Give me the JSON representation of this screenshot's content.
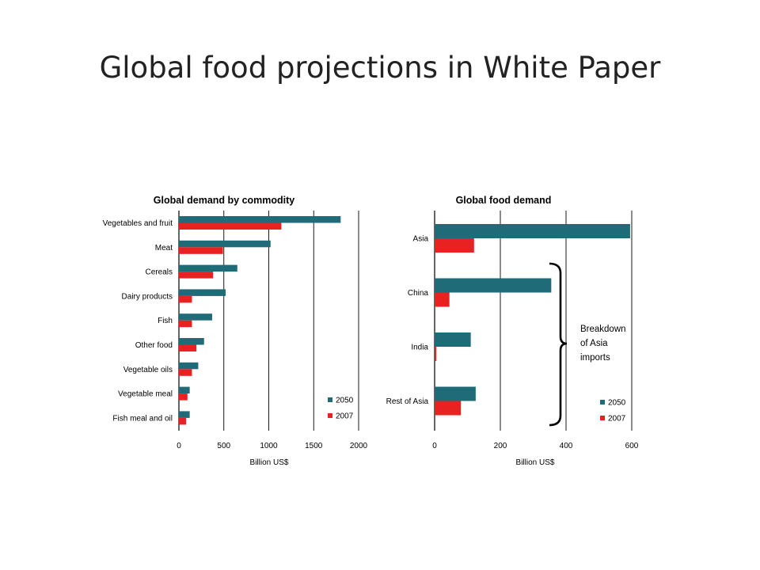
{
  "slide": {
    "title": "Global food projections in White Paper"
  },
  "colors": {
    "2050": "#1f6b78",
    "2007": "#e82121"
  },
  "chart_data": [
    {
      "type": "bar",
      "orientation": "horizontal",
      "title": "Global demand by commodity",
      "xlabel": "Billion US$",
      "ylabel": "",
      "xlim": [
        0,
        2000
      ],
      "xticks": [
        "0",
        "500",
        "1000",
        "1500",
        "2000"
      ],
      "grid": true,
      "legend": "bottom-right",
      "categories": [
        "Vegetables and fruit",
        "Meat",
        "Cereals",
        "Dairy products",
        "Fish",
        "Other food",
        "Vegetable oils",
        "Vegetable meal",
        "Fish meal and oil"
      ],
      "series": [
        {
          "name": "2050",
          "values": [
            1800,
            1020,
            650,
            520,
            370,
            280,
            215,
            120,
            120
          ]
        },
        {
          "name": "2007",
          "values": [
            1140,
            490,
            380,
            145,
            145,
            195,
            145,
            95,
            80
          ]
        }
      ]
    },
    {
      "type": "bar",
      "orientation": "horizontal",
      "title": "Global food demand",
      "xlabel": "Billion US$",
      "ylabel": "",
      "xlim": [
        0,
        600
      ],
      "xticks": [
        "0",
        "200",
        "400",
        "600"
      ],
      "grid": true,
      "legend": "bottom-right",
      "categories": [
        "Asia",
        "China",
        "India",
        "Rest of Asia"
      ],
      "series": [
        {
          "name": "2050",
          "values": [
            595,
            355,
            110,
            125
          ]
        },
        {
          "name": "2007",
          "values": [
            120,
            45,
            5,
            80
          ]
        }
      ],
      "annotation": [
        "Breakdown",
        "of Asia",
        "imports"
      ]
    }
  ]
}
